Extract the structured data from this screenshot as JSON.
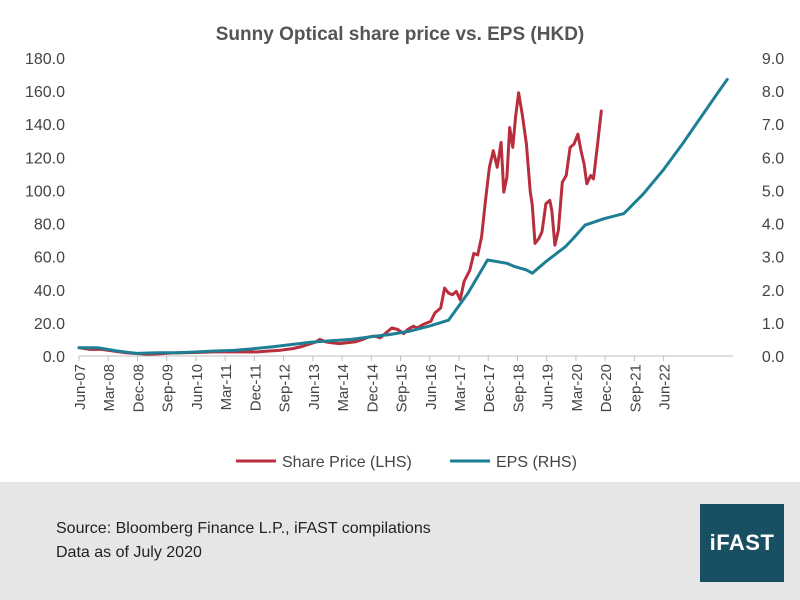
{
  "chart_data": {
    "type": "line",
    "title": "Sunny Optical share price vs. EPS (HKD)",
    "x_ticks": [
      "Jun-07",
      "Mar-08",
      "Dec-08",
      "Sep-09",
      "Jun-10",
      "Mar-11",
      "Dec-11",
      "Sep-12",
      "Jun-13",
      "Mar-14",
      "Dec-14",
      "Sep-15",
      "Jun-16",
      "Mar-17",
      "Dec-17",
      "Sep-18",
      "Jun-19",
      "Mar-20",
      "Dec-20",
      "Sep-21",
      "Jun-22"
    ],
    "y_left": {
      "min": 0,
      "max": 180,
      "step": 20,
      "tick_labels": [
        "0.0",
        "20.0",
        "40.0",
        "60.0",
        "80.0",
        "100.0",
        "120.0",
        "140.0",
        "160.0",
        "180.0"
      ]
    },
    "y_right": {
      "min": 0,
      "max": 9,
      "step": 1,
      "tick_labels": [
        "0.0",
        "1.0",
        "2.0",
        "3.0",
        "4.0",
        "5.0",
        "6.0",
        "7.0",
        "8.0",
        "9.0"
      ]
    },
    "legend": {
      "position": "bottom"
    },
    "series": [
      {
        "name": "Share Price (LHS)",
        "axis": "left",
        "color": "#b82e3c",
        "points": [
          [
            2007.42,
            5
          ],
          [
            2007.7,
            4
          ],
          [
            2008.0,
            4
          ],
          [
            2008.3,
            3
          ],
          [
            2008.6,
            2
          ],
          [
            2008.9,
            1.5
          ],
          [
            2009.2,
            1
          ],
          [
            2009.5,
            1.3
          ],
          [
            2009.8,
            1.8
          ],
          [
            2010.1,
            2
          ],
          [
            2010.5,
            2.2
          ],
          [
            2010.9,
            2.5
          ],
          [
            2011.2,
            2.5
          ],
          [
            2011.5,
            2.6
          ],
          [
            2011.8,
            2.4
          ],
          [
            2012.0,
            2.5
          ],
          [
            2012.3,
            3
          ],
          [
            2012.6,
            3.5
          ],
          [
            2012.9,
            4.5
          ],
          [
            2013.1,
            5.5
          ],
          [
            2013.3,
            7
          ],
          [
            2013.5,
            8.5
          ],
          [
            2013.6,
            10
          ],
          [
            2013.75,
            8.5
          ],
          [
            2013.9,
            8
          ],
          [
            2014.1,
            7.5
          ],
          [
            2014.3,
            8
          ],
          [
            2014.5,
            8.5
          ],
          [
            2014.7,
            10
          ],
          [
            2014.85,
            11.5
          ],
          [
            2015.0,
            12
          ],
          [
            2015.15,
            11
          ],
          [
            2015.3,
            14
          ],
          [
            2015.45,
            17
          ],
          [
            2015.6,
            16
          ],
          [
            2015.75,
            13.5
          ],
          [
            2015.85,
            16
          ],
          [
            2016.0,
            18
          ],
          [
            2016.1,
            17
          ],
          [
            2016.25,
            19
          ],
          [
            2016.45,
            21
          ],
          [
            2016.55,
            26
          ],
          [
            2016.7,
            29
          ],
          [
            2016.8,
            41
          ],
          [
            2016.9,
            38
          ],
          [
            2017.0,
            37
          ],
          [
            2017.1,
            39
          ],
          [
            2017.2,
            34
          ],
          [
            2017.3,
            45
          ],
          [
            2017.45,
            52
          ],
          [
            2017.55,
            62
          ],
          [
            2017.65,
            61
          ],
          [
            2017.75,
            72
          ],
          [
            2017.85,
            94
          ],
          [
            2017.95,
            114
          ],
          [
            2018.05,
            124
          ],
          [
            2018.15,
            114
          ],
          [
            2018.25,
            129
          ],
          [
            2018.32,
            99
          ],
          [
            2018.4,
            108
          ],
          [
            2018.47,
            138
          ],
          [
            2018.55,
            126
          ],
          [
            2018.62,
            144
          ],
          [
            2018.7,
            159
          ],
          [
            2018.8,
            145
          ],
          [
            2018.9,
            128
          ],
          [
            2019.0,
            99
          ],
          [
            2019.05,
            91
          ],
          [
            2019.12,
            68
          ],
          [
            2019.22,
            71
          ],
          [
            2019.3,
            75
          ],
          [
            2019.4,
            92
          ],
          [
            2019.5,
            94
          ],
          [
            2019.55,
            88
          ],
          [
            2019.63,
            67
          ],
          [
            2019.72,
            76
          ],
          [
            2019.82,
            105
          ],
          [
            2019.92,
            109
          ],
          [
            2020.02,
            126
          ],
          [
            2020.12,
            128
          ],
          [
            2020.22,
            134
          ],
          [
            2020.3,
            124
          ],
          [
            2020.38,
            116
          ],
          [
            2020.45,
            104
          ],
          [
            2020.55,
            109
          ],
          [
            2020.62,
            107
          ],
          [
            2020.72,
            127
          ],
          [
            2020.82,
            148
          ]
        ]
      },
      {
        "name": "EPS (RHS)",
        "axis": "right",
        "color": "#1d7f93",
        "points": [
          [
            2007.42,
            0.25
          ],
          [
            2007.9,
            0.25
          ],
          [
            2008.4,
            0.15
          ],
          [
            2008.9,
            0.08
          ],
          [
            2009.4,
            0.1
          ],
          [
            2009.9,
            0.1
          ],
          [
            2010.4,
            0.12
          ],
          [
            2010.9,
            0.15
          ],
          [
            2011.4,
            0.17
          ],
          [
            2011.9,
            0.22
          ],
          [
            2012.4,
            0.28
          ],
          [
            2012.9,
            0.35
          ],
          [
            2013.4,
            0.42
          ],
          [
            2013.9,
            0.46
          ],
          [
            2014.4,
            0.5
          ],
          [
            2014.9,
            0.58
          ],
          [
            2015.4,
            0.65
          ],
          [
            2015.9,
            0.75
          ],
          [
            2016.4,
            0.9
          ],
          [
            2016.9,
            1.08
          ],
          [
            2017.4,
            1.9
          ],
          [
            2017.9,
            2.9
          ],
          [
            2018.4,
            2.8
          ],
          [
            2018.6,
            2.7
          ],
          [
            2018.9,
            2.6
          ],
          [
            2019.05,
            2.5
          ],
          [
            2019.4,
            2.85
          ],
          [
            2019.9,
            3.3
          ],
          [
            2020.1,
            3.55
          ],
          [
            2020.4,
            3.95
          ],
          [
            2020.9,
            4.15
          ],
          [
            2021.4,
            4.3
          ],
          [
            2021.9,
            4.9
          ],
          [
            2022.4,
            5.6
          ],
          [
            2022.9,
            6.4
          ],
          [
            2023.4,
            7.25
          ],
          [
            2023.9,
            8.1
          ],
          [
            2024.05,
            8.35
          ]
        ]
      }
    ]
  },
  "footer": {
    "source_line1": "Source: Bloomberg Finance L.P., iFAST compilations",
    "source_line2": "Data as of July 2020",
    "logo_text": "iFAST"
  }
}
